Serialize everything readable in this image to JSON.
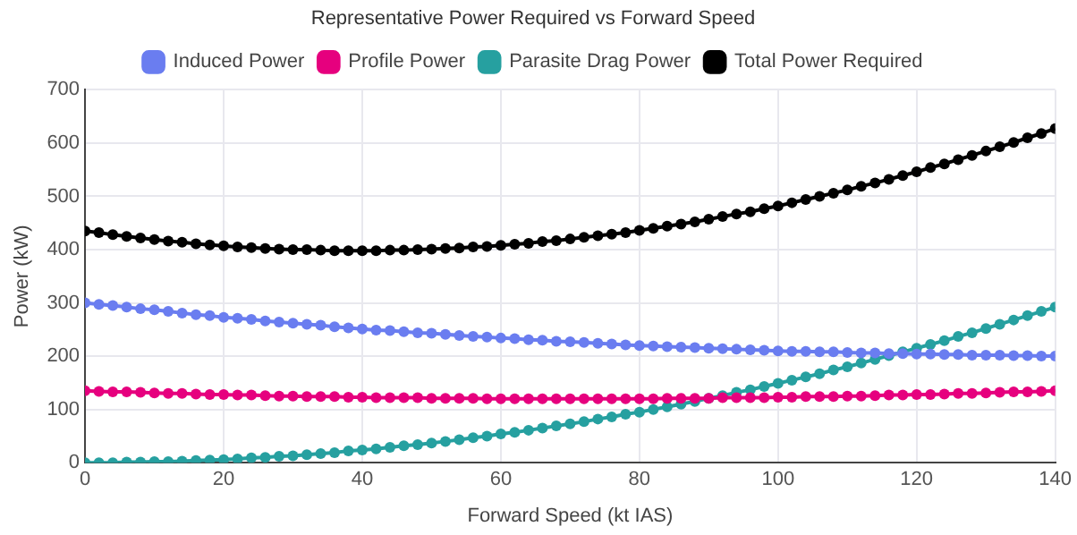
{
  "chart_data": {
    "type": "line",
    "title": "Representative Power Required vs Forward Speed",
    "xlabel": "Forward Speed (kt IAS)",
    "ylabel": "Power (kW)",
    "x": [
      0,
      2,
      4,
      6,
      8,
      10,
      12,
      14,
      16,
      18,
      20,
      22,
      24,
      26,
      28,
      30,
      32,
      34,
      36,
      38,
      40,
      42,
      44,
      46,
      48,
      50,
      52,
      54,
      56,
      58,
      60,
      62,
      64,
      66,
      68,
      70,
      72,
      74,
      76,
      78,
      80,
      82,
      84,
      86,
      88,
      90,
      92,
      94,
      96,
      98,
      100,
      102,
      104,
      106,
      108,
      110,
      112,
      114,
      116,
      118,
      120,
      122,
      124,
      126,
      128,
      130,
      132,
      134,
      136,
      138,
      140
    ],
    "series": [
      {
        "name": "Induced Power",
        "color": "#6a7df0",
        "values": [
          300,
          297,
          295,
          292,
          289,
          287,
          284,
          281,
          278,
          276,
          273,
          271,
          269,
          266,
          264,
          262,
          260,
          258,
          255,
          253,
          251,
          249,
          248,
          246,
          244,
          243,
          241,
          239,
          237,
          236,
          234,
          233,
          231,
          230,
          228,
          227,
          226,
          224,
          223,
          221,
          220,
          219,
          218,
          217,
          216,
          215,
          214,
          213,
          212,
          211,
          210,
          209,
          209,
          208,
          208,
          207,
          206,
          206,
          205,
          205,
          204,
          204,
          203,
          203,
          202,
          202,
          202,
          201,
          201,
          200,
          200
        ]
      },
      {
        "name": "Profile Power",
        "color": "#e6007e",
        "values": [
          135,
          134,
          133,
          133,
          132,
          131,
          130,
          130,
          129,
          128,
          128,
          127,
          127,
          126,
          125,
          125,
          124,
          124,
          124,
          123,
          123,
          122,
          122,
          122,
          122,
          121,
          121,
          121,
          121,
          120,
          120,
          120,
          120,
          120,
          120,
          120,
          120,
          120,
          120,
          120,
          120,
          120,
          121,
          121,
          121,
          121,
          122,
          122,
          122,
          122,
          123,
          123,
          124,
          124,
          124,
          125,
          125,
          126,
          127,
          127,
          128,
          128,
          129,
          130,
          130,
          131,
          132,
          133,
          133,
          134,
          135
        ]
      },
      {
        "name": "Parasite Drag Power",
        "color": "#26a0a0",
        "values": [
          0,
          0,
          0,
          1,
          1,
          2,
          2,
          3,
          4,
          5,
          6,
          7,
          9,
          10,
          12,
          13,
          15,
          17,
          19,
          22,
          24,
          26,
          29,
          32,
          34,
          37,
          40,
          43,
          47,
          50,
          54,
          57,
          61,
          65,
          69,
          73,
          77,
          82,
          86,
          91,
          95,
          100,
          105,
          110,
          115,
          121,
          126,
          132,
          137,
          143,
          149,
          155,
          161,
          167,
          174,
          180,
          187,
          194,
          201,
          208,
          215,
          222,
          229,
          237,
          244,
          252,
          260,
          268,
          276,
          284,
          292
        ]
      },
      {
        "name": "Total Power Required",
        "color": "#000000",
        "values": [
          435,
          432,
          428,
          425,
          422,
          419,
          416,
          414,
          411,
          409,
          407,
          405,
          404,
          402,
          401,
          400,
          400,
          399,
          398,
          398,
          398,
          398,
          399,
          399,
          400,
          401,
          402,
          403,
          405,
          406,
          408,
          410,
          412,
          415,
          417,
          420,
          423,
          426,
          429,
          432,
          436,
          440,
          444,
          448,
          452,
          457,
          462,
          467,
          471,
          477,
          482,
          488,
          494,
          500,
          506,
          512,
          519,
          525,
          532,
          539,
          546,
          554,
          561,
          569,
          577,
          585,
          593,
          601,
          610,
          618,
          627
        ]
      }
    ],
    "xlim": [
      0,
      140
    ],
    "xticks": [
      0,
      20,
      40,
      60,
      80,
      100,
      120,
      140
    ],
    "ylim": [
      0,
      700
    ],
    "yticks": [
      0,
      100,
      200,
      300,
      400,
      500,
      600,
      700
    ],
    "grid": true,
    "legend": "top",
    "marker": "circle",
    "line_style": "solid"
  }
}
